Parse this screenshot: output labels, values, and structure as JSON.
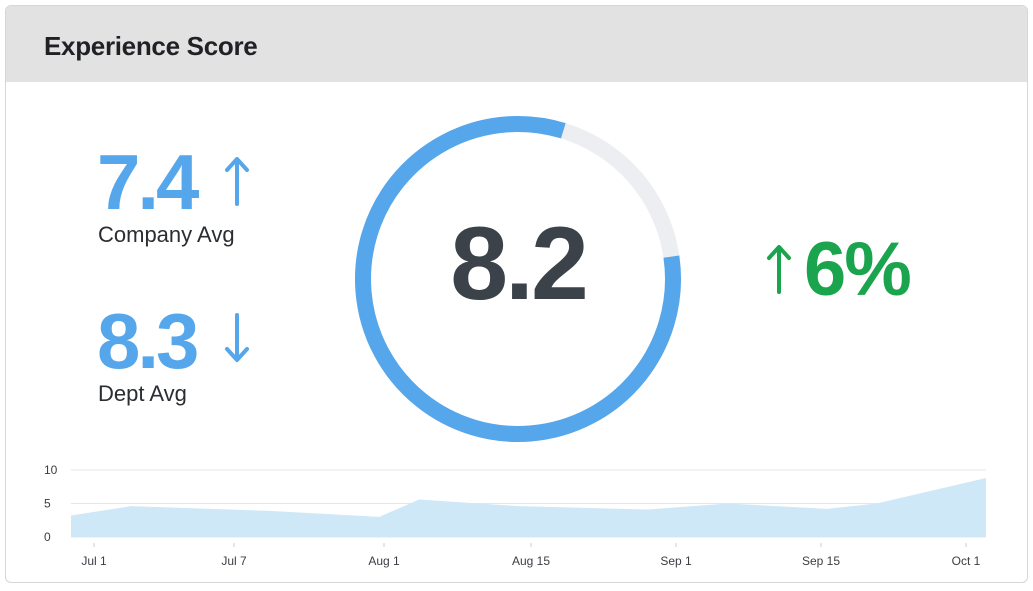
{
  "header": {
    "title": "Experience Score"
  },
  "company": {
    "value": "7.4",
    "label": "Company Avg",
    "trend": "up",
    "trend_icon": "arrow-up-icon"
  },
  "dept": {
    "value": "8.3",
    "label": "Dept Avg",
    "trend": "down",
    "trend_icon": "arrow-down-icon"
  },
  "score": {
    "value": "8.2",
    "max": 10,
    "fill_fraction": 0.82
  },
  "change": {
    "value": "6%",
    "trend": "up",
    "trend_icon": "arrow-up-icon"
  },
  "colors": {
    "accent_blue": "#55a6ea",
    "ring_track": "#eceef1",
    "score_text": "#3b4249",
    "positive_green": "#1aa44e",
    "area_fill": "#cfe8f7",
    "header_bg": "#e2e2e2"
  },
  "chart_data": {
    "type": "area",
    "x_ticks": [
      "Jul 1",
      "Jul 7",
      "Aug 1",
      "Aug 15",
      "Sep 1",
      "Sep 15",
      "Oct 1"
    ],
    "y_ticks": [
      "10",
      "5",
      "0"
    ],
    "ylim": [
      0,
      10
    ],
    "points": [
      {
        "x": "Jul 1",
        "y": 3.2
      },
      {
        "x": "Jul 7",
        "y": 4.6
      },
      {
        "x": "Jul 21",
        "y": 3.9
      },
      {
        "x": "Aug 1",
        "y": 3.0
      },
      {
        "x": "Aug 5",
        "y": 5.6
      },
      {
        "x": "Aug 15",
        "y": 4.6
      },
      {
        "x": "Aug 28",
        "y": 4.1
      },
      {
        "x": "Sep 5",
        "y": 5.0
      },
      {
        "x": "Sep 15",
        "y": 4.2
      },
      {
        "x": "Sep 20",
        "y": 5.0
      },
      {
        "x": "Oct 1",
        "y": 8.8
      }
    ],
    "grid": true,
    "legend": "none"
  }
}
